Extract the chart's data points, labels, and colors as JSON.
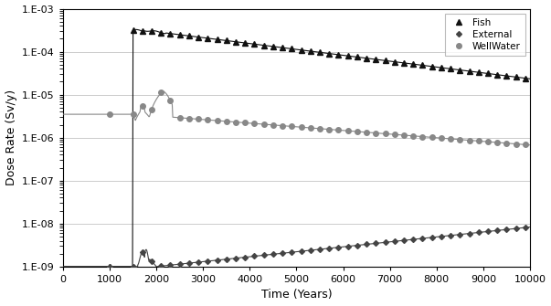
{
  "title": "",
  "xlabel": "Time (Years)",
  "ylabel": "Dose Rate (Sv/y)",
  "xlim": [
    0,
    10000
  ],
  "legend_labels": [
    "Fish",
    "External",
    "WellWater"
  ],
  "fish_color": "#111111",
  "external_color": "#444444",
  "wellwater_color": "#888888",
  "background_color": "#ffffff",
  "grid_color": "#cccccc"
}
